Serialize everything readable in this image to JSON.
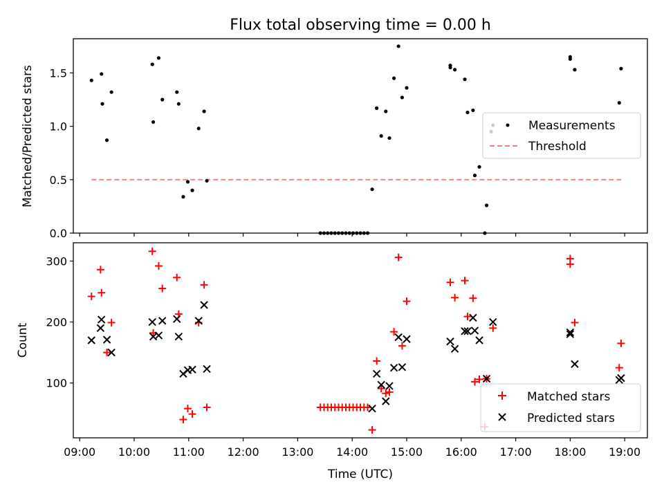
{
  "figure": {
    "title": "Flux total observing time = 0.00 h",
    "xlabel": "Time (UTC)"
  },
  "colors": {
    "measurement": "#000000",
    "threshold": "#f08080",
    "matched": "#ff0000",
    "predicted": "#000000"
  },
  "chart_data": [
    {
      "type": "scatter",
      "ylabel": "Matched/Predicted stars",
      "ylim": [
        0,
        1.82
      ],
      "yticks": [
        0.0,
        0.5,
        1.0,
        1.5
      ],
      "ytick_labels": [
        "0.0",
        "0.5",
        "1.0",
        "1.5"
      ],
      "xlim": [
        "08:53",
        "19:25"
      ],
      "legend": {
        "placement": "center-right",
        "entries": [
          "Measurements",
          "Threshold"
        ]
      },
      "threshold": {
        "name": "Threshold",
        "y": 0.5,
        "x_range": [
          "09:13",
          "18:57"
        ]
      },
      "series": [
        {
          "name": "Measurements",
          "marker": "dot",
          "points": [
            [
              "09:13",
              1.43
            ],
            [
              "09:24",
              1.49
            ],
            [
              "09:25",
              1.21
            ],
            [
              "09:30",
              0.87
            ],
            [
              "09:35",
              1.32
            ],
            [
              "10:20",
              1.58
            ],
            [
              "10:21",
              1.04
            ],
            [
              "10:27",
              1.64
            ],
            [
              "10:31",
              1.25
            ],
            [
              "10:47",
              1.32
            ],
            [
              "10:49",
              1.21
            ],
            [
              "10:54",
              0.34
            ],
            [
              "10:59",
              0.48
            ],
            [
              "11:04",
              0.4
            ],
            [
              "11:11",
              0.98
            ],
            [
              "11:17",
              1.14
            ],
            [
              "11:20",
              0.49
            ],
            [
              "13:25",
              0.0
            ],
            [
              "13:29",
              0.0
            ],
            [
              "13:33",
              0.0
            ],
            [
              "13:37",
              0.0
            ],
            [
              "13:41",
              0.0
            ],
            [
              "13:45",
              0.0
            ],
            [
              "13:49",
              0.0
            ],
            [
              "13:53",
              0.0
            ],
            [
              "13:57",
              0.0
            ],
            [
              "14:01",
              0.0
            ],
            [
              "14:05",
              0.0
            ],
            [
              "14:09",
              0.0
            ],
            [
              "14:13",
              0.0
            ],
            [
              "14:17",
              0.0
            ],
            [
              "14:22",
              0.41
            ],
            [
              "14:27",
              1.17
            ],
            [
              "14:32",
              0.91
            ],
            [
              "14:37",
              1.14
            ],
            [
              "14:41",
              0.89
            ],
            [
              "14:46",
              1.45
            ],
            [
              "14:51",
              1.75
            ],
            [
              "14:55",
              1.27
            ],
            [
              "15:00",
              1.36
            ],
            [
              "15:48",
              1.57
            ],
            [
              "15:48",
              1.55
            ],
            [
              "15:53",
              1.53
            ],
            [
              "16:04",
              1.44
            ],
            [
              "16:07",
              1.13
            ],
            [
              "16:13",
              1.15
            ],
            [
              "16:15",
              0.54
            ],
            [
              "16:20",
              0.62
            ],
            [
              "16:26",
              0.0
            ],
            [
              "16:28",
              0.26
            ],
            [
              "16:33",
              0.95
            ],
            [
              "16:35",
              1.01
            ],
            [
              "18:00",
              1.65
            ],
            [
              "18:00",
              1.63
            ],
            [
              "18:05",
              1.53
            ],
            [
              "18:54",
              1.22
            ],
            [
              "18:56",
              1.54
            ]
          ]
        }
      ]
    },
    {
      "type": "scatter",
      "ylabel": "Count",
      "ylim": [
        10,
        330
      ],
      "yticks": [
        100,
        200,
        300
      ],
      "ytick_labels": [
        "100",
        "200",
        "300"
      ],
      "xlim": [
        "08:53",
        "19:25"
      ],
      "xticks": [
        "09:00",
        "10:00",
        "11:00",
        "12:00",
        "13:00",
        "14:00",
        "15:00",
        "16:00",
        "17:00",
        "18:00",
        "19:00"
      ],
      "xtick_labels": [
        "09:00",
        "10:00",
        "11:00",
        "12:00",
        "13:00",
        "14:00",
        "15:00",
        "16:00",
        "17:00",
        "18:00",
        "19:00"
      ],
      "legend": {
        "placement": "lower-right",
        "entries": [
          "Matched stars",
          "Predicted stars"
        ]
      },
      "series": [
        {
          "name": "Matched stars",
          "marker": "plus",
          "points": [
            [
              "09:13",
              242
            ],
            [
              "09:23",
              286
            ],
            [
              "09:24",
              248
            ],
            [
              "09:30",
              150
            ],
            [
              "09:35",
              199
            ],
            [
              "10:20",
              316
            ],
            [
              "10:21",
              182
            ],
            [
              "10:27",
              292
            ],
            [
              "10:31",
              255
            ],
            [
              "10:47",
              273
            ],
            [
              "10:49",
              213
            ],
            [
              "10:54",
              40
            ],
            [
              "10:59",
              58
            ],
            [
              "11:04",
              49
            ],
            [
              "11:11",
              199
            ],
            [
              "11:17",
              261
            ],
            [
              "11:20",
              60
            ],
            [
              "13:25",
              60
            ],
            [
              "13:29",
              60
            ],
            [
              "13:33",
              60
            ],
            [
              "13:37",
              60
            ],
            [
              "13:41",
              60
            ],
            [
              "13:45",
              60
            ],
            [
              "13:49",
              60
            ],
            [
              "13:53",
              60
            ],
            [
              "13:57",
              60
            ],
            [
              "14:01",
              60
            ],
            [
              "14:05",
              60
            ],
            [
              "14:09",
              60
            ],
            [
              "14:13",
              60
            ],
            [
              "14:17",
              60
            ],
            [
              "14:22",
              23
            ],
            [
              "14:27",
              136
            ],
            [
              "14:32",
              91
            ],
            [
              "14:37",
              83
            ],
            [
              "14:41",
              85
            ],
            [
              "14:46",
              184
            ],
            [
              "14:51",
              306
            ],
            [
              "14:55",
              161
            ],
            [
              "15:00",
              234
            ],
            [
              "15:48",
              265
            ],
            [
              "15:53",
              240
            ],
            [
              "16:04",
              268
            ],
            [
              "16:07",
              209
            ],
            [
              "16:13",
              239
            ],
            [
              "16:15",
              102
            ],
            [
              "16:20",
              106
            ],
            [
              "16:26",
              28
            ],
            [
              "16:28",
              107
            ],
            [
              "16:35",
              190
            ],
            [
              "18:00",
              304
            ],
            [
              "18:00",
              295
            ],
            [
              "18:05",
              199
            ],
            [
              "18:54",
              125
            ],
            [
              "18:56",
              165
            ]
          ]
        },
        {
          "name": "Predicted stars",
          "marker": "x",
          "points": [
            [
              "09:13",
              170
            ],
            [
              "09:23",
              190
            ],
            [
              "09:24",
              204
            ],
            [
              "09:30",
              171
            ],
            [
              "09:35",
              150
            ],
            [
              "10:20",
              200
            ],
            [
              "10:21",
              176
            ],
            [
              "10:27",
              178
            ],
            [
              "10:31",
              202
            ],
            [
              "10:47",
              205
            ],
            [
              "10:49",
              176
            ],
            [
              "10:54",
              115
            ],
            [
              "10:59",
              121
            ],
            [
              "11:04",
              122
            ],
            [
              "11:11",
              202
            ],
            [
              "11:17",
              228
            ],
            [
              "11:20",
              123
            ],
            [
              "14:22",
              58
            ],
            [
              "14:27",
              115
            ],
            [
              "14:32",
              97
            ],
            [
              "14:37",
              70
            ],
            [
              "14:41",
              95
            ],
            [
              "14:46",
              125
            ],
            [
              "14:51",
              175
            ],
            [
              "14:55",
              126
            ],
            [
              "15:00",
              172
            ],
            [
              "15:48",
              168
            ],
            [
              "15:53",
              156
            ],
            [
              "16:04",
              185
            ],
            [
              "16:07",
              185
            ],
            [
              "16:13",
              207
            ],
            [
              "16:15",
              186
            ],
            [
              "16:20",
              170
            ],
            [
              "16:28",
              107
            ],
            [
              "16:35",
              200
            ],
            [
              "18:00",
              183
            ],
            [
              "18:00",
              180
            ],
            [
              "18:05",
              131
            ],
            [
              "18:54",
              105
            ],
            [
              "18:56",
              108
            ]
          ]
        }
      ]
    }
  ]
}
